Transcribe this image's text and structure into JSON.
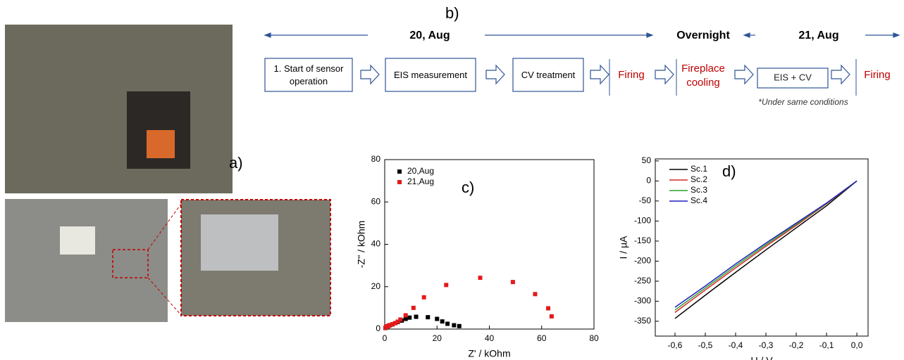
{
  "figure": {
    "panel_a": "a)",
    "panel_b": "b)",
    "timeline": {
      "day1": "20, Aug",
      "night": "Overnight",
      "day2": "21, Aug"
    },
    "steps": [
      "1. Start of sensor operation",
      "EIS measurement",
      "CV treatment",
      "Firing",
      "Fireplace cooling",
      "EIS + CV",
      "Firing"
    ],
    "note": "*Under same conditions"
  },
  "chart_data": [
    {
      "type": "scatter",
      "panel_label": "c)",
      "x_label": "Z' / kOhm",
      "y_label": "-Z'' / kOhm",
      "xlim": [
        0,
        80
      ],
      "ylim": [
        0,
        80
      ],
      "xticks": [
        0,
        20,
        40,
        60,
        80
      ],
      "yticks": [
        0,
        20,
        40,
        60,
        80
      ],
      "grid": false,
      "legend": "top-left",
      "series": [
        {
          "name": "20,Aug",
          "color": "#000000",
          "x": [
            0.3,
            0.6,
            1,
            1.5,
            2,
            3,
            4,
            5,
            6.5,
            8,
            9.5,
            12,
            16.5,
            20,
            22,
            24,
            26.5,
            28.5
          ],
          "y": [
            0.5,
            0.8,
            1.2,
            1.5,
            1.8,
            2.2,
            2.8,
            3.3,
            4,
            4.8,
            5.4,
            5.8,
            5.6,
            4.8,
            3.6,
            2.5,
            1.8,
            1.4
          ]
        },
        {
          "name": "21,Aug",
          "color": "#e31a1c",
          "x": [
            0.3,
            0.6,
            1,
            1.5,
            2,
            3,
            4,
            5,
            6,
            8,
            11,
            15,
            23.5,
            36.5,
            49,
            57.5,
            62.5,
            63.8
          ],
          "y": [
            0.6,
            1,
            1.3,
            1.6,
            1.9,
            2.3,
            2.8,
            3.5,
            4.5,
            6.5,
            10,
            15,
            20.8,
            24.2,
            22.2,
            16.5,
            9.8,
            6
          ]
        }
      ]
    },
    {
      "type": "line",
      "panel_label": "d)",
      "x_label": "U / V",
      "y_label": "I / µA",
      "xlim": [
        -0.665,
        0.037
      ],
      "ylim": [
        -387,
        55
      ],
      "xticks": [
        {
          "value": -0.6,
          "label": "-0,6"
        },
        {
          "value": -0.5,
          "label": "-0,5"
        },
        {
          "value": -0.4,
          "label": "-0,4"
        },
        {
          "value": -0.3,
          "label": "-0,3"
        },
        {
          "value": -0.2,
          "label": "-0,2"
        },
        {
          "value": -0.1,
          "label": "-0,1"
        },
        {
          "value": 0,
          "label": "0,0"
        }
      ],
      "yticks": [
        -350,
        -300,
        -250,
        -200,
        -150,
        -100,
        -50,
        0,
        50
      ],
      "grid": false,
      "legend": "top-left",
      "x": [
        -0.6,
        -0.5,
        -0.4,
        -0.3,
        -0.2,
        -0.1,
        0
      ],
      "series": [
        {
          "name": "Sc.1",
          "color": "#000000",
          "values": [
            -343,
            -285,
            -228,
            -172,
            -117,
            -62,
            0
          ]
        },
        {
          "name": "Sc.2",
          "color": "#d62728",
          "values": [
            -328,
            -272,
            -217,
            -163,
            -111,
            -57,
            0
          ]
        },
        {
          "name": "Sc.3",
          "color": "#2ca02c",
          "values": [
            -322,
            -267,
            -212,
            -159,
            -108,
            -56,
            0
          ]
        },
        {
          "name": "Sc.4",
          "color": "#1f1fbf",
          "values": [
            -315,
            -262,
            -207,
            -155,
            -105,
            -55,
            0
          ]
        }
      ]
    }
  ]
}
